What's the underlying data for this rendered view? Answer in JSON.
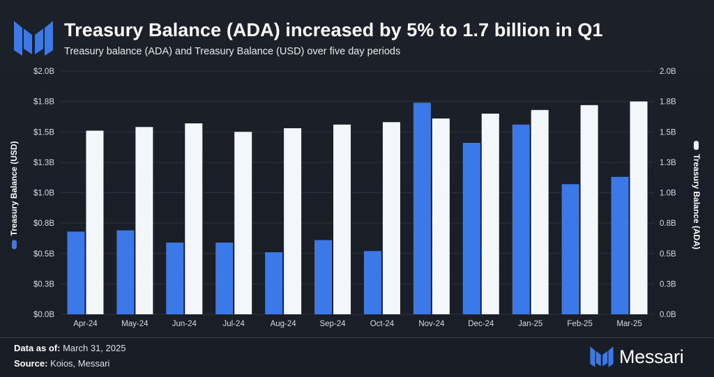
{
  "header": {
    "title": "Treasury Balance (ADA) increased by 5% to 1.7 billion in Q1",
    "subtitle": "Treasury balance (ADA) and Treasury Balance (USD) over five day periods"
  },
  "footer": {
    "data_as_of_label": "Data as of:",
    "data_as_of_value": "March 31, 2025",
    "source_label": "Source:",
    "source_value": "Koios, Messari",
    "brand": "Messari"
  },
  "colors": {
    "usd_bar": "#3b79e8",
    "ada_bar": "#f3f6fb",
    "grid": "#2e333e",
    "background": "#1a1e27"
  },
  "chart_data": {
    "type": "bar",
    "title": "Treasury Balance (ADA) increased by 5% to 1.7 billion in Q1",
    "subtitle": "Treasury balance (ADA) and Treasury Balance (USD) over five day periods",
    "categories": [
      "Apr-24",
      "May-24",
      "Jun-24",
      "Jul-24",
      "Aug-24",
      "Sep-24",
      "Oct-24",
      "Nov-24",
      "Dec-24",
      "Jan-25",
      "Feb-25",
      "Mar-25"
    ],
    "series": [
      {
        "name": "Treasury Balance (USD)",
        "axis": "left",
        "color": "#3b79e8",
        "values": [
          0.68,
          0.69,
          0.59,
          0.59,
          0.51,
          0.61,
          0.52,
          1.74,
          1.41,
          1.56,
          1.07,
          1.13
        ]
      },
      {
        "name": "Treasury Balance (ADA)",
        "axis": "right",
        "color": "#f3f6fb",
        "values": [
          1.51,
          1.54,
          1.57,
          1.5,
          1.53,
          1.56,
          1.58,
          1.61,
          1.65,
          1.68,
          1.72,
          1.75
        ]
      }
    ],
    "y_left": {
      "label": "Treasury Balance (USD)",
      "ylim": [
        0,
        2.0
      ],
      "ticks": [
        0,
        0.25,
        0.5,
        0.75,
        1.0,
        1.25,
        1.5,
        1.75,
        2.0
      ],
      "tick_labels": [
        "$0.0B",
        "$0.3B",
        "$0.5B",
        "$0.8B",
        "$1.0B",
        "$1.3B",
        "$1.5B",
        "$1.8B",
        "$2.0B"
      ]
    },
    "y_right": {
      "label": "Treasury Balance (ADA)",
      "ylim": [
        0,
        2.0
      ],
      "ticks": [
        0,
        0.25,
        0.5,
        0.75,
        1.0,
        1.25,
        1.5,
        1.75,
        2.0
      ],
      "tick_labels": [
        "0.0B",
        "0.3B",
        "0.5B",
        "0.8B",
        "1.0B",
        "1.3B",
        "1.5B",
        "1.8B",
        "2.0B"
      ]
    },
    "grid": true,
    "legend_placement": "axis-labels"
  }
}
